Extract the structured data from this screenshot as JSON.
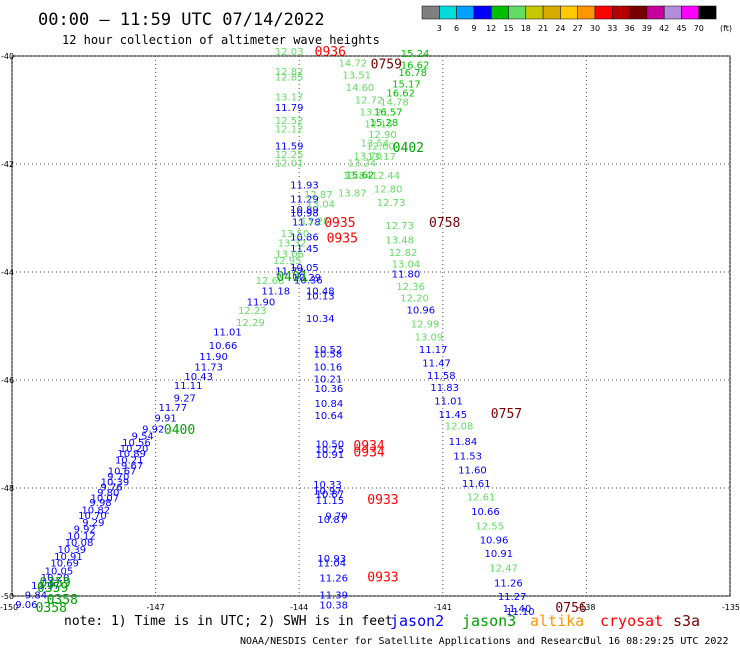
{
  "chart_data": {
    "type": "scatter",
    "title": "00:00 – 11:59 UTC 07/14/2022",
    "subtitle": "12 hour collection of altimeter wave heights",
    "xlim": [
      -150,
      -135
    ],
    "ylim": [
      -50,
      -40
    ],
    "x_ticks": [
      "-150",
      "-147",
      "-144",
      "-141",
      "-138",
      "-135"
    ],
    "y_ticks": [
      "-40",
      "-42",
      "-44",
      "-46",
      "-48",
      "-50"
    ],
    "grid": true,
    "colorbar": {
      "unit": "(ft)",
      "labels": [
        "3",
        "6",
        "9",
        "12",
        "15",
        "18",
        "21",
        "24",
        "27",
        "30",
        "33",
        "36",
        "39",
        "42",
        "45",
        "70"
      ],
      "colors": [
        "#7f7f7f",
        "#00dcdc",
        "#00a0ff",
        "#0000ff",
        "#00c000",
        "#64dc64",
        "#c8c800",
        "#d7aa00",
        "#ffc800",
        "#ff9600",
        "#ff0000",
        "#b40000",
        "#780000",
        "#c8009b",
        "#b48cdc",
        "#ff00ff",
        "#000000"
      ]
    },
    "points": [
      {
        "t": "12.03",
        "x": -144.21,
        "y": -39.98,
        "c": "#64dc64"
      },
      {
        "t": "12.82",
        "x": -144.21,
        "y": -40.35,
        "c": "#64dc64"
      },
      {
        "t": "12.85",
        "x": -144.21,
        "y": -40.45,
        "c": "#64dc64"
      },
      {
        "t": "13.17",
        "x": -144.21,
        "y": -40.82,
        "c": "#64dc64"
      },
      {
        "t": "11.79",
        "x": -144.21,
        "y": -41.02,
        "c": "#0000ff"
      },
      {
        "t": "12.52",
        "x": -144.21,
        "y": -41.26,
        "c": "#64dc64"
      },
      {
        "t": "12.12",
        "x": -144.21,
        "y": -41.42,
        "c": "#64dc64"
      },
      {
        "t": "11.59",
        "x": -144.21,
        "y": -41.73,
        "c": "#0000ff"
      },
      {
        "t": "12.25",
        "x": -144.21,
        "y": -41.89,
        "c": "#64dc64"
      },
      {
        "t": "12.01",
        "x": -144.21,
        "y": -42.05,
        "c": "#64dc64"
      },
      {
        "t": "11.93",
        "x": -143.89,
        "y": -42.45,
        "c": "#0000ff"
      },
      {
        "t": "11.29",
        "x": -143.89,
        "y": -42.71,
        "c": "#0000ff"
      },
      {
        "t": "10.89",
        "x": -143.89,
        "y": -42.91,
        "c": "#0000ff"
      },
      {
        "t": "10.98",
        "x": -143.89,
        "y": -42.97,
        "c": "#0000ff"
      },
      {
        "t": "11.78",
        "x": -143.85,
        "y": -43.14,
        "c": "#0000ff"
      },
      {
        "t": "13.20",
        "x": -143.67,
        "y": -43.12,
        "c": "#64dc64"
      },
      {
        "t": "13.04",
        "x": -143.55,
        "y": -42.81,
        "c": "#64dc64"
      },
      {
        "t": "12.87",
        "x": -143.6,
        "y": -42.63,
        "c": "#64dc64"
      },
      {
        "t": "10.86",
        "x": -143.89,
        "y": -43.42,
        "c": "#0000ff"
      },
      {
        "t": "11.45",
        "x": -143.89,
        "y": -43.63,
        "c": "#0000ff"
      },
      {
        "t": "13.50",
        "x": -144.09,
        "y": -43.35,
        "c": "#64dc64"
      },
      {
        "t": "13.32",
        "x": -144.15,
        "y": -43.53,
        "c": "#64dc64"
      },
      {
        "t": "13.06",
        "x": -144.2,
        "y": -43.73,
        "c": "#64dc64"
      },
      {
        "t": "12.95",
        "x": -144.25,
        "y": -43.85,
        "c": "#64dc64"
      },
      {
        "t": "10.05",
        "x": -143.89,
        "y": -43.98,
        "c": "#0000ff"
      },
      {
        "t": "11.72",
        "x": -144.2,
        "y": -44.05,
        "c": "#0000ff"
      },
      {
        "t": "10.29",
        "x": -143.84,
        "y": -44.17,
        "c": "#0000ff"
      },
      {
        "t": "10.36",
        "x": -143.81,
        "y": -44.21,
        "c": "#0000ff"
      },
      {
        "t": "12.68",
        "x": -144.61,
        "y": -44.22,
        "c": "#64dc64"
      },
      {
        "t": "11.18",
        "x": -144.49,
        "y": -44.42,
        "c": "#0000ff"
      },
      {
        "t": "10.48",
        "x": -143.56,
        "y": -44.42,
        "c": "#0000ff"
      },
      {
        "t": "10.13",
        "x": -143.56,
        "y": -44.51,
        "c": "#0000ff"
      },
      {
        "t": "11.90",
        "x": -144.8,
        "y": -44.62,
        "c": "#0000ff"
      },
      {
        "t": "12.23",
        "x": -144.98,
        "y": -44.78,
        "c": "#64dc64"
      },
      {
        "t": "10.34",
        "x": -143.56,
        "y": -44.93,
        "c": "#0000ff"
      },
      {
        "t": "12.29",
        "x": -145.02,
        "y": -45.0,
        "c": "#64dc64"
      },
      {
        "t": "11.01",
        "x": -145.5,
        "y": -45.18,
        "c": "#0000ff"
      },
      {
        "t": "10.66",
        "x": -145.59,
        "y": -45.43,
        "c": "#0000ff"
      },
      {
        "t": "10.52",
        "x": -143.4,
        "y": -45.5,
        "c": "#0000ff"
      },
      {
        "t": "10.58",
        "x": -143.4,
        "y": -45.58,
        "c": "#0000ff"
      },
      {
        "t": "11.90",
        "x": -145.79,
        "y": -45.63,
        "c": "#0000ff"
      },
      {
        "t": "11.73",
        "x": -145.89,
        "y": -45.82,
        "c": "#0000ff"
      },
      {
        "t": "10.16",
        "x": -143.4,
        "y": -45.82,
        "c": "#0000ff"
      },
      {
        "t": "10.43",
        "x": -146.1,
        "y": -46.0,
        "c": "#0000ff"
      },
      {
        "t": "10.21",
        "x": -143.4,
        "y": -46.05,
        "c": "#0000ff"
      },
      {
        "t": "11.11",
        "x": -146.32,
        "y": -46.17,
        "c": "#0000ff"
      },
      {
        "t": "10.36",
        "x": -143.38,
        "y": -46.22,
        "c": "#0000ff"
      },
      {
        "t": "9.27",
        "x": -146.39,
        "y": -46.4,
        "c": "#0000ff"
      },
      {
        "t": "10.84",
        "x": -143.38,
        "y": -46.5,
        "c": "#0000ff"
      },
      {
        "t": "11.77",
        "x": -146.64,
        "y": -46.57,
        "c": "#0000ff"
      },
      {
        "t": "9.91",
        "x": -146.79,
        "y": -46.77,
        "c": "#0000ff"
      },
      {
        "t": "10.64",
        "x": -143.38,
        "y": -46.72,
        "c": "#0000ff"
      },
      {
        "t": "9.92",
        "x": -147.05,
        "y": -46.97,
        "c": "#0000ff"
      },
      {
        "t": "9.54",
        "x": -147.27,
        "y": -47.1,
        "c": "#0000ff"
      },
      {
        "t": "10.50",
        "x": -143.36,
        "y": -47.25,
        "c": "#0000ff"
      },
      {
        "t": "10.75",
        "x": -143.36,
        "y": -47.35,
        "c": "#0000ff"
      },
      {
        "t": "10.91",
        "x": -143.36,
        "y": -47.44,
        "c": "#0000ff"
      },
      {
        "t": "10.33",
        "x": -143.41,
        "y": -48.0,
        "c": "#0000ff"
      },
      {
        "t": "10.97",
        "x": -143.41,
        "y": -48.12,
        "c": "#0000ff"
      },
      {
        "t": "10.87",
        "x": -143.36,
        "y": -48.18,
        "c": "#0000ff"
      },
      {
        "t": "11.15",
        "x": -143.36,
        "y": -48.3,
        "c": "#0000ff"
      },
      {
        "t": "9.70",
        "x": -143.22,
        "y": -48.58,
        "c": "#0000ff"
      },
      {
        "t": "10.87",
        "x": -143.32,
        "y": -48.65,
        "c": "#0000ff"
      },
      {
        "t": "10.93",
        "x": -143.32,
        "y": -49.37,
        "c": "#0000ff"
      },
      {
        "t": "11.04",
        "x": -143.32,
        "y": -49.45,
        "c": "#0000ff"
      },
      {
        "t": "11.26",
        "x": -143.28,
        "y": -49.73,
        "c": "#0000ff"
      },
      {
        "t": "11.39",
        "x": -143.28,
        "y": -50.05,
        "c": "#0000ff"
      },
      {
        "t": "10.38",
        "x": -143.28,
        "y": -50.23,
        "c": "#0000ff"
      },
      {
        "t": "14.72",
        "x": -142.88,
        "y": -40.19,
        "c": "#64dc64"
      },
      {
        "t": "13.51",
        "x": -142.8,
        "y": -40.42,
        "c": "#64dc64"
      },
      {
        "t": "14.60",
        "x": -142.73,
        "y": -40.65,
        "c": "#64dc64"
      },
      {
        "t": "12.72",
        "x": -142.54,
        "y": -40.88,
        "c": "#64dc64"
      },
      {
        "t": "13.21",
        "x": -142.44,
        "y": -41.1,
        "c": "#64dc64"
      },
      {
        "t": "12.15",
        "x": -142.34,
        "y": -41.32,
        "c": "#64dc64"
      },
      {
        "t": "12.90",
        "x": -142.26,
        "y": -41.52,
        "c": "#64dc64"
      },
      {
        "t": "13.54",
        "x": -142.42,
        "y": -41.68,
        "c": "#64dc64"
      },
      {
        "t": "13.70",
        "x": -142.57,
        "y": -41.92,
        "c": "#64dc64"
      },
      {
        "t": "13.24",
        "x": -142.69,
        "y": -42.05,
        "c": "#64dc64"
      },
      {
        "t": "13.84",
        "x": -142.79,
        "y": -42.28,
        "c": "#64dc64"
      },
      {
        "t": "13.87",
        "x": -142.89,
        "y": -42.6,
        "c": "#64dc64"
      },
      {
        "t": "15.62",
        "x": -142.73,
        "y": -42.27,
        "c": "#00c000"
      },
      {
        "t": "15.24",
        "x": -141.58,
        "y": -40.02,
        "c": "#00c000"
      },
      {
        "t": "16.62",
        "x": -141.58,
        "y": -40.23,
        "c": "#00c000"
      },
      {
        "t": "16.78",
        "x": -141.63,
        "y": -40.37,
        "c": "#00c000"
      },
      {
        "t": "15.17",
        "x": -141.76,
        "y": -40.58,
        "c": "#00c000"
      },
      {
        "t": "16.62",
        "x": -141.88,
        "y": -40.75,
        "c": "#00c000"
      },
      {
        "t": "14.78",
        "x": -142.01,
        "y": -40.92,
        "c": "#64dc64"
      },
      {
        "t": "16.57",
        "x": -142.14,
        "y": -41.1,
        "c": "#00c000"
      },
      {
        "t": "15.28",
        "x": -142.23,
        "y": -41.3,
        "c": "#00c000"
      },
      {
        "t": "12.60",
        "x": -142.3,
        "y": -41.73,
        "c": "#64dc64"
      },
      {
        "t": "13.17",
        "x": -142.28,
        "y": -41.93,
        "c": "#64dc64"
      },
      {
        "t": "12.44",
        "x": -142.19,
        "y": -42.28,
        "c": "#64dc64"
      },
      {
        "t": "12.80",
        "x": -142.14,
        "y": -42.53,
        "c": "#64dc64"
      },
      {
        "t": "12.73",
        "x": -142.08,
        "y": -42.78,
        "c": "#64dc64"
      },
      {
        "t": "12.73",
        "x": -141.9,
        "y": -43.2,
        "c": "#64dc64"
      },
      {
        "t": "13.48",
        "x": -141.9,
        "y": -43.47,
        "c": "#64dc64"
      },
      {
        "t": "12.82",
        "x": -141.83,
        "y": -43.7,
        "c": "#64dc64"
      },
      {
        "t": "13.04",
        "x": -141.77,
        "y": -43.92,
        "c": "#64dc64"
      },
      {
        "t": "11.80",
        "x": -141.77,
        "y": -44.1,
        "c": "#0000ff"
      },
      {
        "t": "12.36",
        "x": -141.67,
        "y": -44.33,
        "c": "#64dc64"
      },
      {
        "t": "12.20",
        "x": -141.59,
        "y": -44.55,
        "c": "#64dc64"
      },
      {
        "t": "10.96",
        "x": -141.46,
        "y": -44.77,
        "c": "#0000ff"
      },
      {
        "t": "12.99",
        "x": -141.37,
        "y": -45.03,
        "c": "#64dc64"
      },
      {
        "t": "13.09",
        "x": -141.29,
        "y": -45.27,
        "c": "#64dc64"
      },
      {
        "t": "11.17",
        "x": -141.2,
        "y": -45.5,
        "c": "#0000ff"
      },
      {
        "t": "11.47",
        "x": -141.13,
        "y": -45.75,
        "c": "#0000ff"
      },
      {
        "t": "11.58",
        "x": -141.03,
        "y": -45.98,
        "c": "#0000ff"
      },
      {
        "t": "11.83",
        "x": -140.96,
        "y": -46.2,
        "c": "#0000ff"
      },
      {
        "t": "11.01",
        "x": -140.88,
        "y": -46.45,
        "c": "#0000ff"
      },
      {
        "t": "11.45",
        "x": -140.79,
        "y": -46.7,
        "c": "#0000ff"
      },
      {
        "t": "12.08",
        "x": -140.66,
        "y": -46.92,
        "c": "#64dc64"
      },
      {
        "t": "11.84",
        "x": -140.58,
        "y": -47.2,
        "c": "#0000ff"
      },
      {
        "t": "11.53",
        "x": -140.48,
        "y": -47.47,
        "c": "#0000ff"
      },
      {
        "t": "11.60",
        "x": -140.38,
        "y": -47.73,
        "c": "#0000ff"
      },
      {
        "t": "11.61",
        "x": -140.3,
        "y": -47.98,
        "c": "#0000ff"
      },
      {
        "t": "12.61",
        "x": -140.2,
        "y": -48.23,
        "c": "#64dc64"
      },
      {
        "t": "10.66",
        "x": -140.11,
        "y": -48.5,
        "c": "#0000ff"
      },
      {
        "t": "12.55",
        "x": -140.02,
        "y": -48.77,
        "c": "#64dc64"
      },
      {
        "t": "10.96",
        "x": -139.93,
        "y": -49.03,
        "c": "#0000ff"
      },
      {
        "t": "10.91",
        "x": -139.83,
        "y": -49.28,
        "c": "#0000ff"
      },
      {
        "t": "12.47",
        "x": -139.73,
        "y": -49.55,
        "c": "#64dc64"
      },
      {
        "t": "11.26",
        "x": -139.63,
        "y": -49.82,
        "c": "#0000ff"
      },
      {
        "t": "11.27",
        "x": -139.55,
        "y": -50.07,
        "c": "#0000ff"
      },
      {
        "t": "11.40",
        "x": -139.45,
        "y": -50.3,
        "c": "#0000ff"
      },
      {
        "t": "11.10",
        "x": -139.38,
        "y": -50.35,
        "c": "#0000ff"
      },
      {
        "t": "10.56",
        "x": -147.4,
        "y": -47.22,
        "c": "#0000ff"
      },
      {
        "t": "10.20",
        "x": -147.45,
        "y": -47.33,
        "c": "#0000ff"
      },
      {
        "t": "10.89",
        "x": -147.5,
        "y": -47.43,
        "c": "#0000ff"
      },
      {
        "t": "10.21",
        "x": -147.55,
        "y": -47.55,
        "c": "#0000ff"
      },
      {
        "t": "9.67",
        "x": -147.49,
        "y": -47.65,
        "c": "#0000ff"
      },
      {
        "t": "10.67",
        "x": -147.7,
        "y": -47.75,
        "c": "#0000ff"
      },
      {
        "t": "9.70",
        "x": -147.78,
        "y": -47.85,
        "c": "#0000ff"
      },
      {
        "t": "10.39",
        "x": -147.85,
        "y": -47.95,
        "c": "#0000ff"
      },
      {
        "t": "9.76",
        "x": -147.92,
        "y": -48.05,
        "c": "#0000ff"
      },
      {
        "t": "9.80",
        "x": -147.99,
        "y": -48.15,
        "c": "#0000ff"
      },
      {
        "t": "10.07",
        "x": -148.06,
        "y": -48.25,
        "c": "#0000ff"
      },
      {
        "t": "9.98",
        "x": -148.15,
        "y": -48.33,
        "c": "#0000ff"
      },
      {
        "t": "10.82",
        "x": -148.25,
        "y": -48.47,
        "c": "#0000ff"
      },
      {
        "t": "10.70",
        "x": -148.32,
        "y": -48.57,
        "c": "#0000ff"
      },
      {
        "t": "9.29",
        "x": -148.3,
        "y": -48.7,
        "c": "#0000ff"
      },
      {
        "t": "9.92",
        "x": -148.48,
        "y": -48.82,
        "c": "#0000ff"
      },
      {
        "t": "10.12",
        "x": -148.55,
        "y": -48.95,
        "c": "#0000ff"
      },
      {
        "t": "10.08",
        "x": -148.6,
        "y": -49.07,
        "c": "#0000ff"
      },
      {
        "t": "10.39",
        "x": -148.75,
        "y": -49.2,
        "c": "#0000ff"
      },
      {
        "t": "10.91",
        "x": -148.82,
        "y": -49.33,
        "c": "#0000ff"
      },
      {
        "t": "10.69",
        "x": -148.9,
        "y": -49.45,
        "c": "#0000ff"
      },
      {
        "t": "10.05",
        "x": -149.02,
        "y": -49.6,
        "c": "#0000ff"
      },
      {
        "t": "10.20",
        "x": -149.1,
        "y": -49.72,
        "c": "#0000ff"
      },
      {
        "t": "10.97",
        "x": -149.3,
        "y": -49.87,
        "c": "#0000ff"
      },
      {
        "t": "9.84",
        "x": -149.5,
        "y": -50.05,
        "c": "#0000ff"
      },
      {
        "t": "9.06",
        "x": -149.7,
        "y": -50.22,
        "c": "#0000ff"
      }
    ],
    "time_labels": [
      {
        "t": "0936",
        "x": -143.35,
        "y": -40.0,
        "c": "#ff0000"
      },
      {
        "t": "0759",
        "x": -142.18,
        "y": -40.23,
        "c": "#780000"
      },
      {
        "t": "0402",
        "x": -141.72,
        "y": -41.78,
        "c": "#00a000"
      },
      {
        "t": "0935",
        "x": -143.15,
        "y": -43.17,
        "c": "#ff0000"
      },
      {
        "t": "0935",
        "x": -143.1,
        "y": -43.45,
        "c": "#ff0000"
      },
      {
        "t": "0758",
        "x": -140.96,
        "y": -43.17,
        "c": "#780000"
      },
      {
        "t": "0401",
        "x": -144.15,
        "y": -44.17,
        "c": "#00a000"
      },
      {
        "t": "0400",
        "x": -146.5,
        "y": -47.0,
        "c": "#00a000"
      },
      {
        "t": "0757",
        "x": -139.67,
        "y": -46.7,
        "c": "#780000"
      },
      {
        "t": "0934",
        "x": -142.54,
        "y": -47.3,
        "c": "#ff0000"
      },
      {
        "t": "0934",
        "x": -142.54,
        "y": -47.42,
        "c": "#ff0000"
      },
      {
        "t": "0933",
        "x": -142.25,
        "y": -48.3,
        "c": "#ff0000"
      },
      {
        "t": "0933",
        "x": -142.25,
        "y": -49.73,
        "c": "#ff0000"
      },
      {
        "t": "0359",
        "x": -149.1,
        "y": -49.83,
        "c": "#00a000"
      },
      {
        "t": "0359",
        "x": -149.15,
        "y": -49.93,
        "c": "#00a000"
      },
      {
        "t": "0358",
        "x": -148.95,
        "y": -50.15,
        "c": "#00a000"
      },
      {
        "t": "0358",
        "x": -149.18,
        "y": -50.3,
        "c": "#00a000"
      },
      {
        "t": "0756",
        "x": -138.32,
        "y": -50.3,
        "c": "#780000"
      }
    ]
  },
  "footer": {
    "note": "note: 1) Time is in UTC; 2) SWH is in feet",
    "legend": [
      {
        "name": "jason2",
        "color": "#0000ff"
      },
      {
        "name": "jason3",
        "color": "#00a000"
      },
      {
        "name": "altika",
        "color": "#ff9600"
      },
      {
        "name": "cryosat",
        "color": "#ff0000"
      },
      {
        "name": "s3a",
        "color": "#780000"
      }
    ],
    "credit": "NOAA/NESDIS Center for Satellite Applications and Research",
    "timestamp": "Jul 16 08:29:25 UTC 2022"
  }
}
